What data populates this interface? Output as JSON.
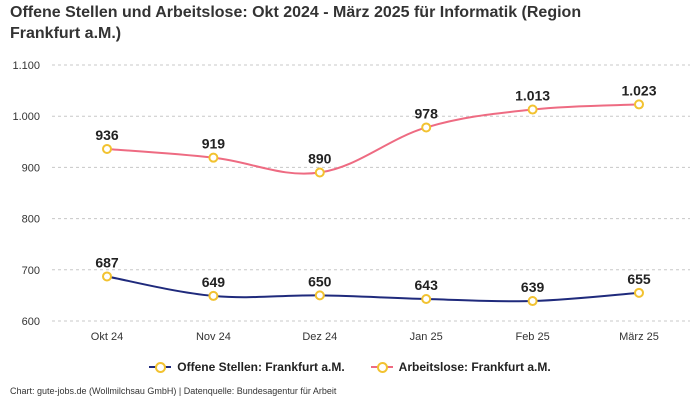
{
  "chart_data": {
    "type": "line",
    "title": "Offene Stellen und Arbeitslose: Okt 2024 - März 2025 für Informatik (Region Frankfurt a.M.)",
    "categories": [
      "Okt 24",
      "Nov 24",
      "Dez 24",
      "Jan 25",
      "Feb 25",
      "März 25"
    ],
    "yticks": [
      "600",
      "700",
      "800",
      "900",
      "1.000",
      "1.100"
    ],
    "ytick_values": [
      600,
      700,
      800,
      900,
      1000,
      1100
    ],
    "ylim": [
      600,
      1100
    ],
    "grid": true,
    "legend_position": "bottom",
    "series": [
      {
        "name": "Offene Stellen: Frankfurt a.M.",
        "values": [
          687,
          649,
          650,
          643,
          639,
          655
        ],
        "labels": [
          "687",
          "649",
          "650",
          "643",
          "639",
          "655"
        ],
        "color": "#1f2a7c"
      },
      {
        "name": "Arbeitslose: Frankfurt a.M.",
        "values": [
          936,
          919,
          890,
          978,
          1013,
          1023
        ],
        "labels": [
          "936",
          "919",
          "890",
          "978",
          "1.013",
          "1.023"
        ],
        "color": "#ee6b82"
      }
    ],
    "marker_color": "#f2c230"
  },
  "footer": {
    "credit": "Chart: gute-jobs.de (Wollmilchsau GmbH) | Datenquelle: Bundesagentur für Arbeit"
  }
}
